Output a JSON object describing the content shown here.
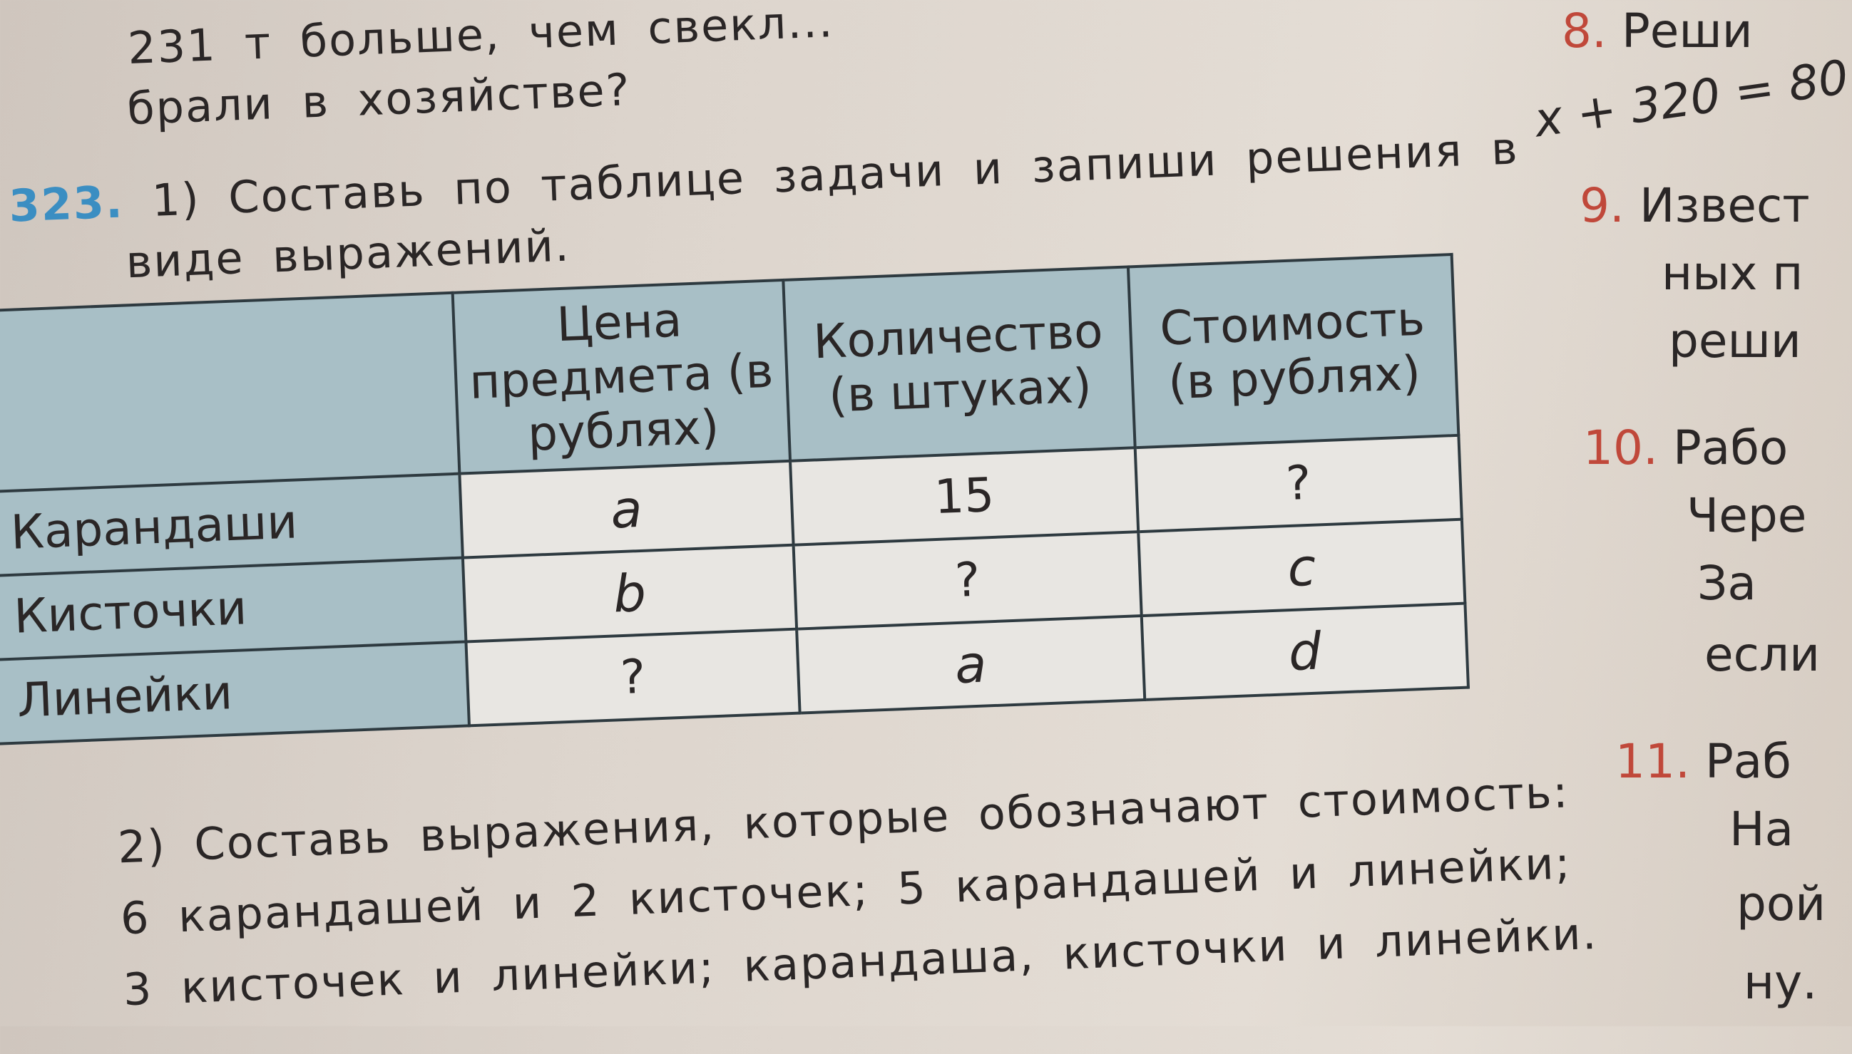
{
  "top_lines": [
    "231 т больше, чем свекл...",
    "брали в хозяйстве?"
  ],
  "exercise": {
    "number": "323.",
    "task1_line1": "1) Составь по таблице задачи и запиши решения в",
    "task1_line2": "виде выражений.",
    "table": {
      "headers": [
        "",
        "Цена предмета (в рублях)",
        "Количество (в штуках)",
        "Стоимость (в рублях)"
      ],
      "rows": [
        {
          "label": "Карандаши",
          "price": "a",
          "quantity": "15",
          "cost": "?"
        },
        {
          "label": "Кисточки",
          "price": "b",
          "quantity": "?",
          "cost": "c"
        },
        {
          "label": "Линейки",
          "price": "?",
          "quantity": "a",
          "cost": "d"
        }
      ]
    },
    "task2_lines": [
      "2) Составь выражения, которые обозначают стоимость:",
      "6 карандашей и 2 кисточек; 5 карандашей и линейки;",
      "3 кисточек и линейки; карандаша, кисточки и линейки."
    ]
  },
  "right_column": [
    {
      "number": "8.",
      "text": "Реши"
    },
    {
      "number": "",
      "text": "x + 320 = 80"
    },
    {
      "number": "9.",
      "text": "Извест"
    },
    {
      "number": "",
      "text": "ных п"
    },
    {
      "number": "",
      "text": "реши"
    },
    {
      "number": "10.",
      "text": "Рабо"
    },
    {
      "number": "",
      "text": "Чере"
    },
    {
      "number": "",
      "text": "За"
    },
    {
      "number": "",
      "text": "если"
    },
    {
      "number": "11.",
      "text": "Раб"
    },
    {
      "number": "",
      "text": "На"
    },
    {
      "number": "",
      "text": "рой"
    },
    {
      "number": "",
      "text": "ну."
    }
  ],
  "colors": {
    "exercise_number": "#3b8ec2",
    "side_numbers": "#c0483a",
    "table_header": "#a8bfc6"
  }
}
